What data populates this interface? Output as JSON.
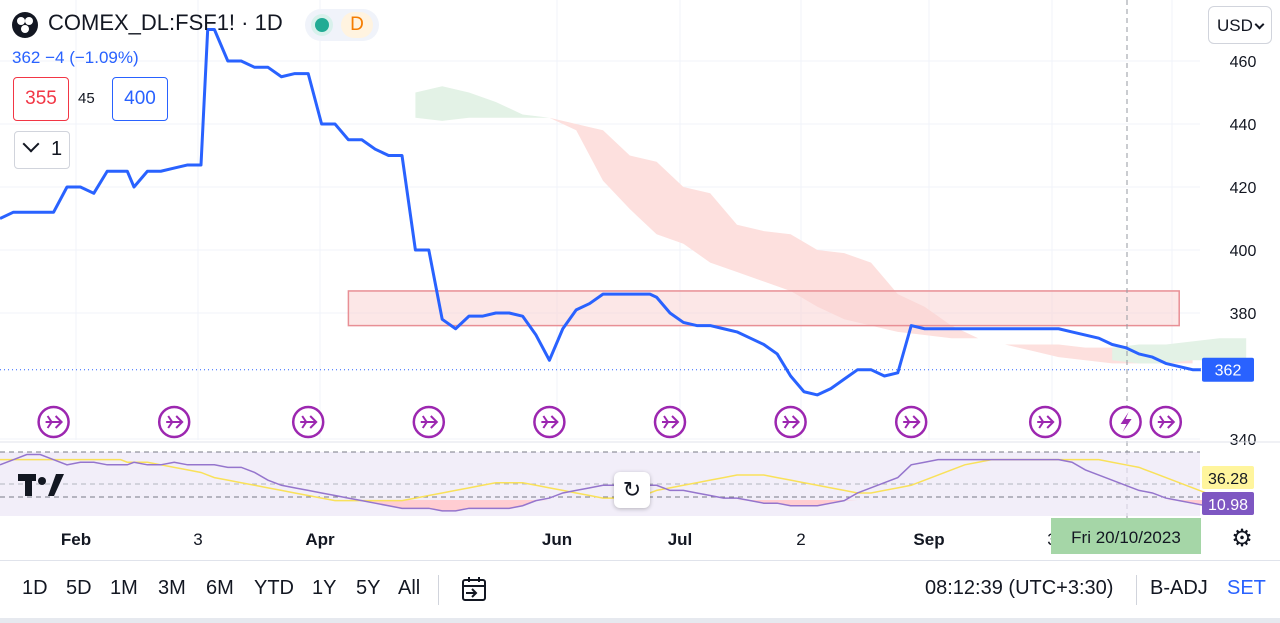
{
  "header": {
    "symbol_title": "COMEX_DL:FSF1! · 1D",
    "badge_letter": "D",
    "price_change": "362  −4 (−1.09%)",
    "bid": "355",
    "spread": "45",
    "ask": "400",
    "quantity": "1",
    "currency": "USD"
  },
  "colors": {
    "price_line": "#2962ff",
    "bid": "#f23645",
    "ask": "#2962ff",
    "cloud_bull": "#e3f2e6",
    "cloud_bear": "#fde0de",
    "zone_fill": "#f9d3d4",
    "zone_stroke": "#e88f95",
    "rsi_line": "#9575cd",
    "rsi_ma": "#ffeb3b",
    "event_icon": "#9c27b0",
    "date_badge_bg": "#a5d6a7"
  },
  "chart_data": {
    "type": "line",
    "title": "",
    "price_axis": {
      "ticks": [
        460,
        440,
        420,
        400,
        380,
        340
      ],
      "ylim": [
        330,
        475
      ]
    },
    "time_axis": {
      "labels": [
        "Feb",
        "3",
        "Apr",
        "Jun",
        "Jul",
        "2",
        "Sep",
        "3"
      ]
    },
    "series": [
      {
        "name": "",
        "x": [
          0,
          2,
          4,
          6,
          8,
          10,
          12,
          14,
          16,
          18,
          19,
          20,
          22,
          24,
          26,
          28,
          30,
          31,
          32,
          34,
          36,
          38,
          40,
          42,
          44,
          46,
          48,
          50,
          52,
          54,
          56,
          58,
          60,
          62,
          64,
          66,
          68,
          70,
          72,
          74,
          76,
          78,
          80,
          82,
          84,
          86,
          88,
          90,
          92,
          94,
          96,
          97,
          98,
          100,
          102,
          104,
          106,
          108,
          110,
          112,
          114,
          116,
          118,
          120,
          122,
          124,
          126,
          128,
          130,
          132,
          134,
          136,
          138,
          140,
          142,
          144,
          146,
          148,
          150,
          152,
          154,
          156,
          158,
          160,
          162,
          164,
          166,
          168,
          170,
          172,
          174,
          176,
          178,
          180
        ],
        "values": [
          410,
          412,
          412,
          412,
          412,
          420,
          420,
          418,
          425,
          425,
          425,
          420,
          425,
          425,
          426,
          427,
          427,
          470,
          470,
          460,
          460,
          458,
          458,
          455,
          456,
          456,
          440,
          440,
          435,
          435,
          432,
          430,
          430,
          400,
          400,
          378,
          375,
          379,
          379,
          380,
          380,
          379,
          373,
          365,
          375,
          381,
          383,
          386,
          386,
          386,
          386,
          386,
          385,
          380,
          377,
          376,
          376,
          375,
          374,
          372,
          370,
          367,
          360,
          355,
          354,
          356,
          359,
          362,
          362,
          360,
          361,
          376,
          375,
          375,
          375,
          375,
          375,
          375,
          375,
          375,
          375,
          375,
          375,
          374,
          373,
          372,
          370,
          369,
          367,
          366,
          364,
          363,
          362,
          362
        ]
      }
    ],
    "last_price": {
      "label": "362"
    },
    "cloud": {
      "bull_first": {
        "x": [
          62,
          66,
          70,
          74,
          78,
          82
        ],
        "top": [
          450,
          452,
          450,
          447,
          443,
          442
        ],
        "bottom": [
          442,
          441,
          442,
          442,
          442,
          442
        ]
      },
      "bear": {
        "x": [
          82,
          86,
          90,
          94,
          98,
          102,
          106,
          110,
          114,
          118,
          122,
          126,
          130,
          134,
          138,
          142,
          146,
          150,
          154,
          158,
          162,
          166,
          170,
          174,
          178
        ],
        "top": [
          442,
          440,
          438,
          430,
          428,
          420,
          418,
          408,
          406,
          405,
          400,
          399,
          396,
          386,
          382,
          376,
          372,
          370,
          370,
          370,
          369,
          369,
          368,
          368,
          367
        ],
        "bottom": [
          442,
          438,
          422,
          413,
          405,
          402,
          396,
          393,
          390,
          387,
          382,
          378,
          376,
          374,
          373,
          372,
          372,
          370,
          368,
          366,
          365,
          364,
          364,
          364,
          364
        ]
      },
      "bull_last": {
        "x": [
          166,
          170,
          174,
          178,
          182,
          186
        ],
        "top": [
          369,
          370,
          370,
          371,
          372,
          372
        ],
        "bottom": [
          365,
          364,
          364,
          365,
          365,
          365
        ]
      }
    },
    "resistance_zone": {
      "x": [
        52,
        176
      ],
      "y": [
        376,
        387
      ]
    },
    "events": {
      "dividend_x": [
        8,
        26,
        46,
        64,
        82,
        100,
        118,
        136,
        156,
        174
      ],
      "split_x": [
        168
      ]
    },
    "rsi": {
      "labels": [
        "36.28",
        "10.98"
      ],
      "values": [
        20,
        22,
        24,
        24,
        22,
        20,
        21,
        21,
        20,
        20,
        20,
        21,
        20,
        20,
        21,
        20,
        20,
        20,
        20,
        19,
        19,
        17,
        14,
        12,
        11,
        10,
        9,
        8,
        7,
        6,
        5,
        4,
        3,
        3,
        3,
        2,
        2,
        3,
        3,
        3,
        3,
        4,
        6,
        7,
        9,
        10,
        11,
        12,
        12,
        12,
        12,
        12,
        12,
        10,
        10,
        9,
        8,
        7,
        7,
        6,
        5,
        5,
        4,
        4,
        4,
        5,
        6,
        9,
        11,
        13,
        15,
        20,
        21,
        22,
        22,
        22,
        22,
        22,
        22,
        22,
        22,
        22,
        22,
        21,
        18,
        16,
        14,
        12,
        10,
        9,
        7,
        6,
        5,
        4
      ],
      "ma": [
        22,
        22,
        22,
        22,
        22,
        22,
        22,
        22,
        22,
        22,
        21,
        21,
        21,
        20,
        19,
        18,
        17,
        16,
        15,
        14,
        13,
        12,
        11,
        10,
        9,
        8,
        7,
        6,
        6,
        6,
        6,
        6,
        6,
        7,
        8,
        9,
        10,
        11,
        12,
        13,
        13,
        13,
        12,
        11,
        10,
        9,
        8,
        7,
        7,
        7,
        8,
        9,
        10,
        11,
        12,
        13,
        14,
        15,
        16,
        16,
        16,
        15,
        14,
        13,
        12,
        11,
        10,
        9,
        9,
        10,
        11,
        12,
        14,
        16,
        18,
        20,
        21,
        22,
        22,
        22,
        22,
        22,
        22,
        22,
        22,
        22,
        21,
        20,
        19,
        17,
        15,
        13,
        11,
        9
      ]
    }
  },
  "date_badge": "Fri 20/10/2023",
  "toolbar": {
    "timeframes": [
      "1D",
      "5D",
      "1M",
      "3M",
      "6M",
      "YTD",
      "1Y",
      "5Y",
      "All"
    ],
    "clock": "08:12:39 (UTC+3:30)",
    "badj": "B-ADJ",
    "set": "SET"
  }
}
